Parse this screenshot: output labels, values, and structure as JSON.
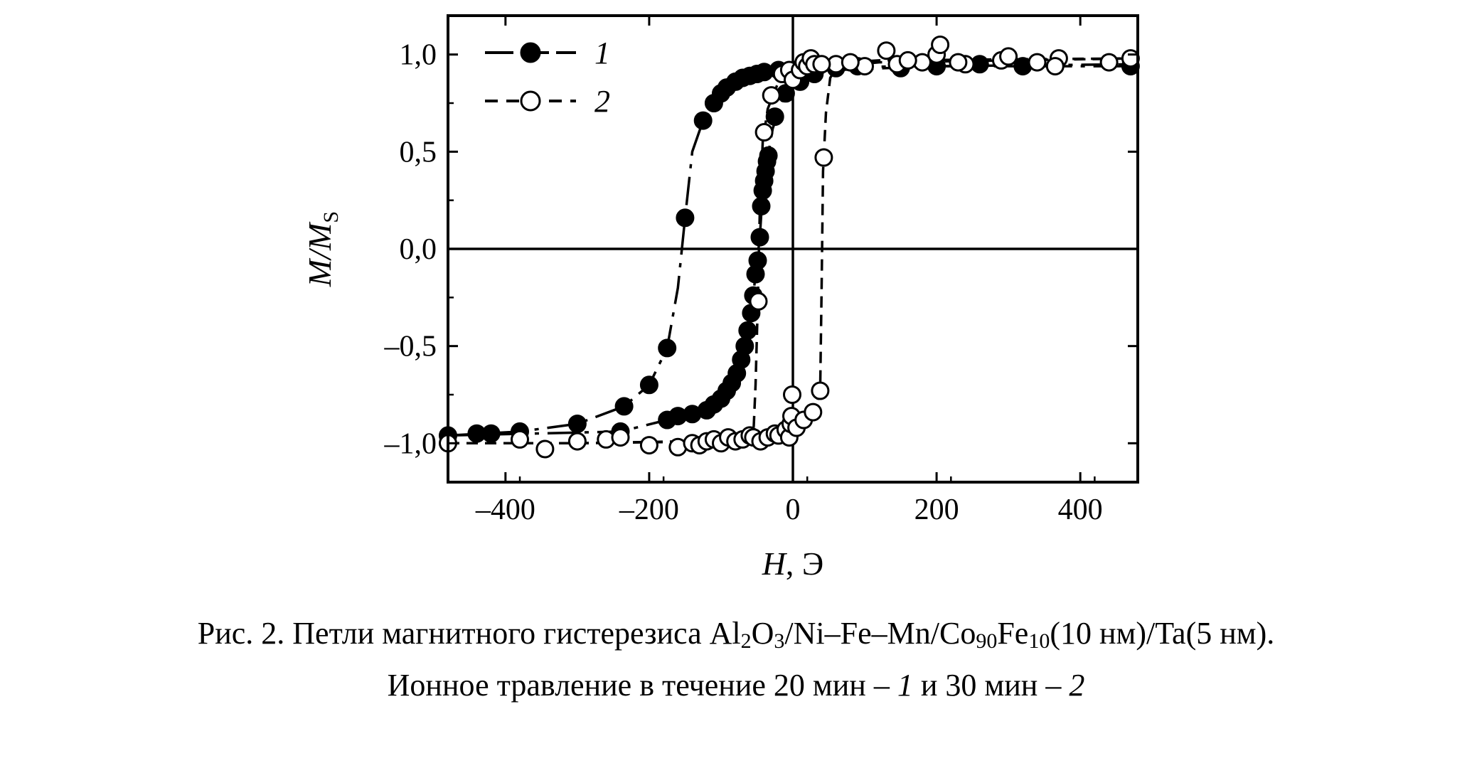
{
  "chart_data": {
    "type": "scatter",
    "xlabel_italic": "H",
    "xlabel_rest": ", Э",
    "ylabel_italic": "M/M",
    "ylabel_sub": "S",
    "xlim": [
      -480,
      480
    ],
    "ylim": [
      -1.2,
      1.2
    ],
    "x_ticks": [
      -400,
      -200,
      0,
      200,
      400
    ],
    "x_tick_labels": [
      "–400",
      "–200",
      "0",
      "200",
      "400"
    ],
    "y_ticks": [
      1.0,
      0.5,
      0.0,
      -0.5,
      -1.0
    ],
    "y_tick_labels": [
      "1,0",
      "0,5",
      "0,0",
      "–0,5",
      "–1,0"
    ],
    "zero_lines": true,
    "legend_position": "top-left",
    "series": [
      {
        "name": "1",
        "marker": "filled-circle",
        "line": "dash-dot",
        "color": "#000000",
        "points": [
          [
            -420,
            -0.95
          ],
          [
            -380,
            -0.94
          ],
          [
            -300,
            -0.9
          ],
          [
            -235,
            -0.81
          ],
          [
            -200,
            -0.7
          ],
          [
            -175,
            -0.51
          ],
          [
            -150,
            0.16
          ],
          [
            -125,
            0.66
          ],
          [
            -110,
            0.75
          ],
          [
            -100,
            0.8
          ],
          [
            -92,
            0.83
          ],
          [
            -80,
            0.86
          ],
          [
            -70,
            0.88
          ],
          [
            -60,
            0.89
          ],
          [
            -50,
            0.9
          ],
          [
            -40,
            0.91
          ],
          [
            -20,
            0.92
          ],
          [
            10,
            0.93
          ],
          [
            60,
            0.93
          ],
          [
            90,
            0.94
          ],
          [
            150,
            0.93
          ],
          [
            200,
            0.94
          ],
          [
            260,
            0.95
          ],
          [
            320,
            0.94
          ],
          [
            470,
            0.94
          ],
          [
            -480,
            -0.96
          ],
          [
            -440,
            -0.95
          ],
          [
            -240,
            -0.94
          ],
          [
            -175,
            -0.88
          ],
          [
            -160,
            -0.86
          ],
          [
            -140,
            -0.85
          ],
          [
            -120,
            -0.83
          ],
          [
            -110,
            -0.8
          ],
          [
            -100,
            -0.77
          ],
          [
            -92,
            -0.73
          ],
          [
            -85,
            -0.69
          ],
          [
            -78,
            -0.64
          ],
          [
            -72,
            -0.57
          ],
          [
            -67,
            -0.5
          ],
          [
            -63,
            -0.42
          ],
          [
            -58,
            -0.33
          ],
          [
            -55,
            -0.24
          ],
          [
            -52,
            -0.13
          ],
          [
            -49,
            -0.06
          ],
          [
            -46,
            0.06
          ],
          [
            -44,
            0.22
          ],
          [
            -42,
            0.3
          ],
          [
            -40,
            0.35
          ],
          [
            -38,
            0.4
          ],
          [
            -36,
            0.45
          ],
          [
            -34,
            0.48
          ],
          [
            -25,
            0.68
          ],
          [
            -10,
            0.8
          ],
          [
            10,
            0.86
          ],
          [
            30,
            0.9
          ]
        ]
      },
      {
        "name": "2",
        "marker": "open-circle",
        "line": "dash",
        "color": "#000000",
        "points": [
          [
            -480,
            -1.0
          ],
          [
            -380,
            -0.98
          ],
          [
            -345,
            -1.03
          ],
          [
            -300,
            -0.99
          ],
          [
            -260,
            -0.98
          ],
          [
            -240,
            -0.97
          ],
          [
            -200,
            -1.01
          ],
          [
            -160,
            -1.02
          ],
          [
            -140,
            -1.0
          ],
          [
            -130,
            -1.01
          ],
          [
            -120,
            -0.99
          ],
          [
            -110,
            -0.98
          ],
          [
            -100,
            -1.0
          ],
          [
            -90,
            -0.97
          ],
          [
            -80,
            -0.99
          ],
          [
            -70,
            -0.98
          ],
          [
            -60,
            -0.96
          ],
          [
            -55,
            -0.97
          ],
          [
            -45,
            -0.99
          ],
          [
            -35,
            -0.97
          ],
          [
            -25,
            -0.95
          ],
          [
            -20,
            -0.96
          ],
          [
            -10,
            -0.93
          ],
          [
            -5,
            -0.97
          ],
          [
            -3,
            -0.9
          ],
          [
            -2,
            -0.86
          ],
          [
            -1,
            -0.75
          ],
          [
            5,
            -0.92
          ],
          [
            15,
            -0.88
          ],
          [
            28,
            -0.84
          ],
          [
            38,
            -0.73
          ],
          [
            43,
            0.47
          ],
          [
            60,
            0.95
          ],
          [
            100,
            0.94
          ],
          [
            145,
            0.95
          ],
          [
            180,
            0.96
          ],
          [
            200,
            1.0
          ],
          [
            240,
            0.95
          ],
          [
            290,
            0.97
          ],
          [
            340,
            0.96
          ],
          [
            440,
            0.96
          ],
          [
            470,
            0.98
          ],
          [
            -48,
            -0.27
          ],
          [
            -40,
            0.6
          ],
          [
            -30,
            0.79
          ],
          [
            -15,
            0.9
          ],
          [
            -5,
            0.92
          ],
          [
            0,
            0.87
          ],
          [
            10,
            0.92
          ],
          [
            15,
            0.96
          ],
          [
            20,
            0.94
          ],
          [
            25,
            0.98
          ],
          [
            30,
            0.95
          ],
          [
            40,
            0.95
          ],
          [
            80,
            0.96
          ],
          [
            130,
            1.02
          ],
          [
            160,
            0.97
          ],
          [
            205,
            1.05
          ],
          [
            230,
            0.96
          ],
          [
            300,
            0.99
          ],
          [
            370,
            0.98
          ],
          [
            365,
            0.94
          ]
        ]
      }
    ],
    "lines": {
      "series1_lower": [
        [
          -480,
          -0.96
        ],
        [
          -380,
          -0.94
        ],
        [
          -300,
          -0.9
        ],
        [
          -235,
          -0.81
        ],
        [
          -200,
          -0.7
        ],
        [
          -175,
          -0.51
        ],
        [
          -160,
          -0.2
        ],
        [
          -150,
          0.16
        ],
        [
          -140,
          0.5
        ],
        [
          -125,
          0.66
        ],
        [
          -110,
          0.75
        ],
        [
          -90,
          0.84
        ],
        [
          -60,
          0.89
        ],
        [
          -20,
          0.92
        ],
        [
          40,
          0.93
        ],
        [
          150,
          0.94
        ],
        [
          480,
          0.94
        ]
      ],
      "series1_upper": [
        [
          -480,
          -0.96
        ],
        [
          -240,
          -0.94
        ],
        [
          -175,
          -0.88
        ],
        [
          -140,
          -0.85
        ],
        [
          -110,
          -0.8
        ],
        [
          -90,
          -0.71
        ],
        [
          -75,
          -0.6
        ],
        [
          -65,
          -0.46
        ],
        [
          -57,
          -0.3
        ],
        [
          -51,
          -0.1
        ],
        [
          -46,
          0.06
        ],
        [
          -42,
          0.3
        ],
        [
          -36,
          0.45
        ],
        [
          -28,
          0.62
        ],
        [
          -15,
          0.76
        ],
        [
          0,
          0.84
        ],
        [
          30,
          0.9
        ],
        [
          60,
          0.92
        ],
        [
          200,
          0.94
        ],
        [
          480,
          0.95
        ]
      ],
      "series2_lower": [
        [
          -480,
          -1.0
        ],
        [
          -300,
          -1.0
        ],
        [
          -100,
          -0.99
        ],
        [
          -10,
          -0.96
        ],
        [
          10,
          -0.92
        ],
        [
          30,
          -0.84
        ],
        [
          38,
          -0.72
        ],
        [
          40,
          -0.2
        ],
        [
          42,
          0.4
        ],
        [
          46,
          0.7
        ],
        [
          52,
          0.88
        ],
        [
          62,
          0.94
        ],
        [
          120,
          0.96
        ],
        [
          300,
          0.97
        ],
        [
          480,
          0.98
        ]
      ],
      "series2_upper": [
        [
          -480,
          -1.0
        ],
        [
          -300,
          -1.0
        ],
        [
          -150,
          -0.99
        ],
        [
          -70,
          -0.98
        ],
        [
          -55,
          -0.96
        ],
        [
          -52,
          -0.7
        ],
        [
          -49,
          -0.3
        ],
        [
          -46,
          0.2
        ],
        [
          -42,
          0.55
        ],
        [
          -35,
          0.72
        ],
        [
          -20,
          0.86
        ],
        [
          0,
          0.92
        ],
        [
          30,
          0.95
        ],
        [
          120,
          0.97
        ],
        [
          480,
          0.98
        ]
      ]
    }
  },
  "caption": {
    "line1": {
      "prefix": "Рис. 2. Петли магнитного гистерезиса Al",
      "sub1": "2",
      "mid1": "O",
      "sub2": "3",
      "mid2": "/Ni–Fe–Mn/Co",
      "sub3": "90",
      "mid3": "Fe",
      "sub4": "10",
      "suffix": "(10 нм)/Ta(5 нм)."
    },
    "line2": {
      "prefix": "Ионное травление в течение 20 мин – ",
      "num1": "1",
      "mid": " и 30 мин – ",
      "num2": "2"
    }
  }
}
